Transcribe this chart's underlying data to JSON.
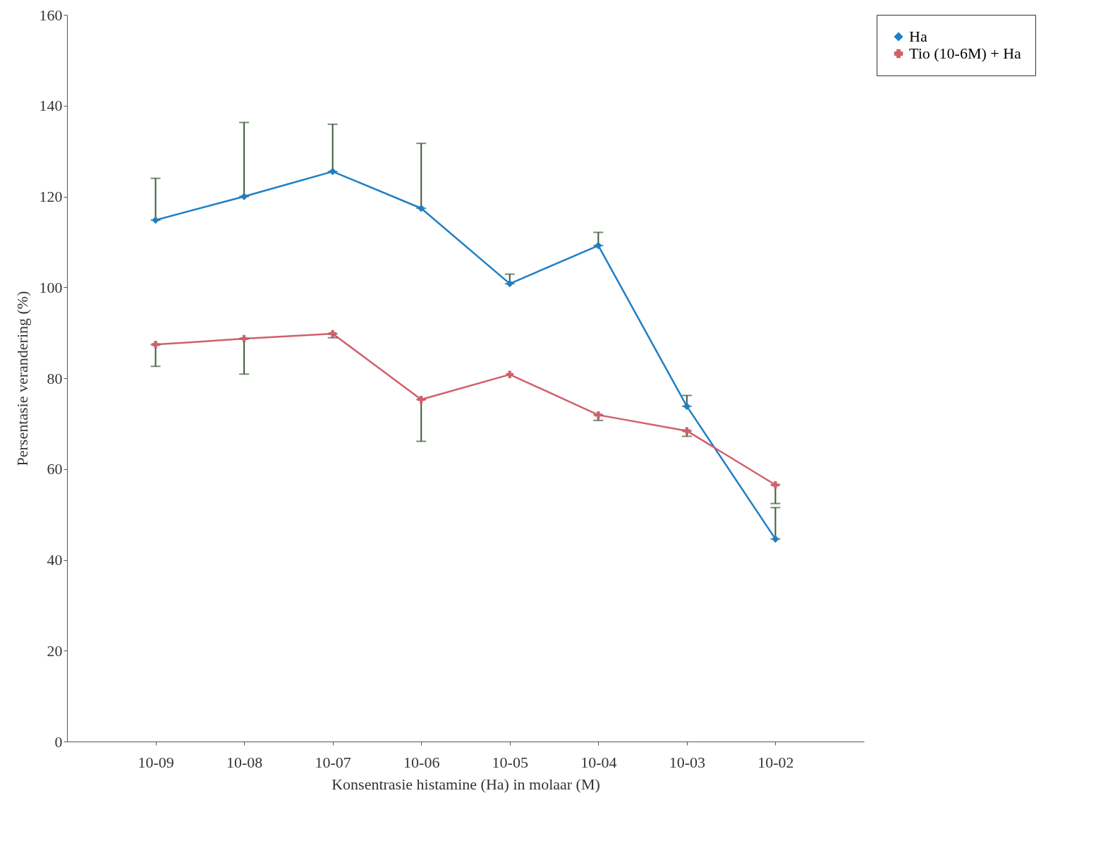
{
  "chart_data": {
    "type": "line",
    "xlabel": "Konsentrasie histamine (Ha) in molaar (M)",
    "ylabel": "Persentasie verandering (%)",
    "categories": [
      "10-09",
      "10-08",
      "10-07",
      "10-06",
      "10-05",
      "10-04",
      "10-03",
      "10-02"
    ],
    "ylim": [
      0,
      160
    ],
    "yticks": [
      0,
      20,
      40,
      60,
      80,
      100,
      120,
      140,
      160
    ],
    "grid": false,
    "legend": "right",
    "series": [
      {
        "name": "Ha",
        "color": "#1f7fc4",
        "marker": "diamond",
        "values": [
          114.8,
          120.0,
          125.5,
          117.4,
          100.8,
          109.2,
          73.8,
          44.6
        ],
        "errors": [
          [
            114.8,
            124.0
          ],
          [
            120.0,
            136.3
          ],
          [
            125.5,
            135.9
          ],
          [
            117.4,
            131.7
          ],
          [
            100.8,
            102.9
          ],
          [
            109.2,
            112.1
          ],
          [
            73.8,
            76.2
          ],
          [
            44.6,
            51.5
          ]
        ]
      },
      {
        "name": "Tio (10-6M) + Ha",
        "color": "#d0606a",
        "marker": "cross",
        "values": [
          87.4,
          88.7,
          89.8,
          75.3,
          80.8,
          71.9,
          68.4,
          56.5
        ],
        "errors": [
          [
            82.6,
            87.4
          ],
          [
            80.9,
            88.7
          ],
          [
            88.9,
            89.8
          ],
          [
            66.1,
            75.3
          ],
          null,
          [
            70.7,
            71.9
          ],
          [
            67.2,
            68.4
          ],
          [
            52.4,
            56.5
          ]
        ]
      }
    ]
  }
}
